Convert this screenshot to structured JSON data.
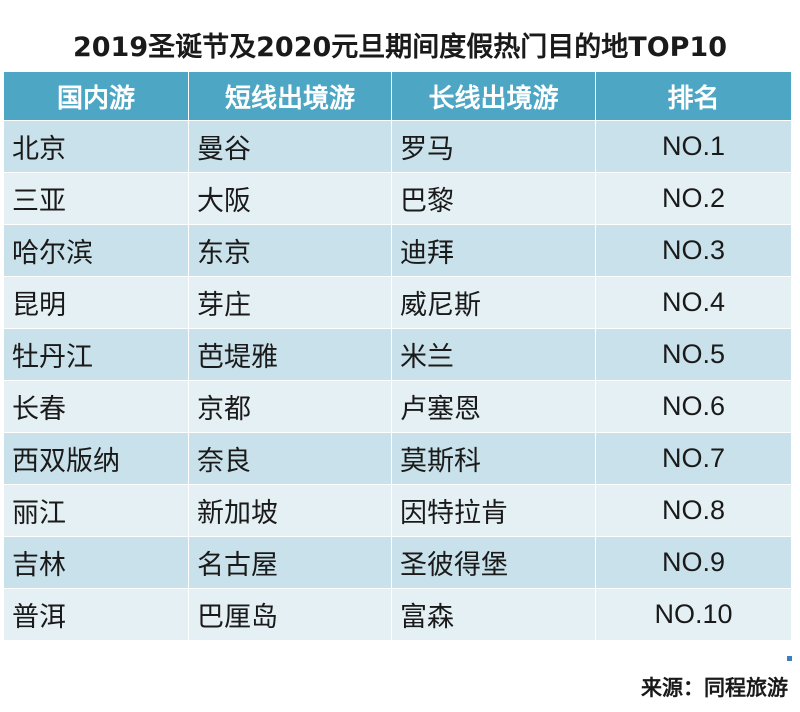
{
  "title": "2019圣诞节及2020元旦期间度假热门目的地TOP10",
  "table": {
    "headers": [
      "国内游",
      "短线出境游",
      "长线出境游",
      "排名"
    ],
    "rows": [
      [
        "北京",
        "曼谷",
        "罗马",
        "NO.1"
      ],
      [
        "三亚",
        "大阪",
        "巴黎",
        "NO.2"
      ],
      [
        "哈尔滨",
        "东京",
        "迪拜",
        "NO.3"
      ],
      [
        "昆明",
        "芽庄",
        "威尼斯",
        "NO.4"
      ],
      [
        "牡丹江",
        "芭堤雅",
        "米兰",
        "NO.5"
      ],
      [
        "长春",
        "京都",
        "卢塞恩",
        "NO.6"
      ],
      [
        "西双版纳",
        "奈良",
        "莫斯科",
        "NO.7"
      ],
      [
        "丽江",
        "新加坡",
        "因特拉肯",
        "NO.8"
      ],
      [
        "吉林",
        "名古屋",
        "圣彼得堡",
        "NO.9"
      ],
      [
        "普洱",
        "巴厘岛",
        "富森",
        "NO.10"
      ]
    ]
  },
  "source": "来源：同程旅游",
  "colors": {
    "header_bg": "#4da6c4",
    "row_odd_bg": "#c9e1ea",
    "row_even_bg": "#e5f0f5"
  }
}
